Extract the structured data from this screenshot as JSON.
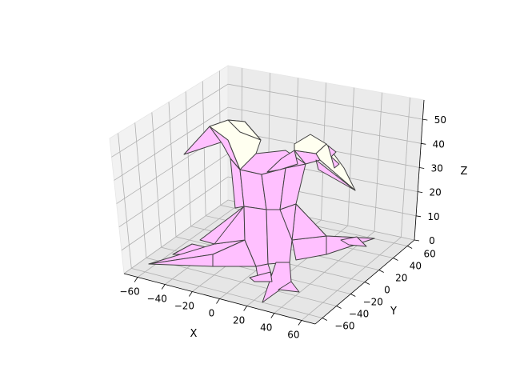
{
  "chart_data": {
    "type": "surface3d",
    "title": "",
    "xlabel": "X",
    "ylabel": "Y",
    "zlabel": "Z",
    "x_ticks": [
      -60,
      -40,
      -20,
      0,
      20,
      40,
      60
    ],
    "y_ticks": [
      -60,
      -40,
      -20,
      0,
      20,
      40,
      60
    ],
    "z_ticks": [
      0,
      10,
      20,
      30,
      40,
      50
    ],
    "xlim": [
      -70,
      70
    ],
    "ylim": [
      -70,
      70
    ],
    "zlim": [
      0,
      58
    ],
    "grid": true,
    "colors": {
      "body": "#ffc0ff",
      "wings": "#fffff0",
      "edges": "#404040",
      "pane": "#f2f2f2",
      "gridline": "#b0b0b0"
    }
  }
}
